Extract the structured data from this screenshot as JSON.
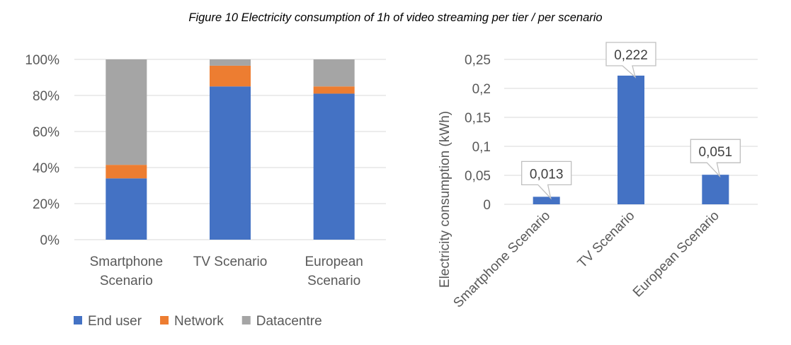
{
  "figure_title": "Figure 10 Electricity consumption of 1h of video streaming per tier / per scenario",
  "chart_data": [
    {
      "type": "bar",
      "stacked": true,
      "percent": true,
      "categories": [
        [
          "Smartphone",
          "Scenario"
        ],
        [
          "TV Scenario"
        ],
        [
          "European",
          "Scenario"
        ]
      ],
      "series": [
        {
          "name": "End user",
          "color": "#4472C4",
          "values": [
            34,
            85,
            81
          ]
        },
        {
          "name": "Network",
          "color": "#ED7D31",
          "values": [
            7.5,
            11.5,
            4
          ]
        },
        {
          "name": "Datacentre",
          "color": "#A5A5A5",
          "values": [
            58.5,
            3.5,
            15
          ]
        }
      ],
      "yticks": [
        "0%",
        "20%",
        "40%",
        "60%",
        "80%",
        "100%"
      ],
      "ylim": [
        0,
        100
      ],
      "grid": true,
      "legend": "bottom"
    },
    {
      "type": "bar",
      "categories": [
        "Smartphone Scenario",
        "TV Scenario",
        "European Scenario"
      ],
      "values": [
        0.013,
        0.222,
        0.051
      ],
      "data_labels": [
        "0,013",
        "0,222",
        "0,051"
      ],
      "color": "#4472C4",
      "ylabel": "Electricity consumption (kWh)",
      "yticks": [
        "0",
        "0,05",
        "0,1",
        "0,15",
        "0,2",
        "0,25"
      ],
      "ylim": [
        0,
        0.25
      ],
      "grid": true
    }
  ]
}
